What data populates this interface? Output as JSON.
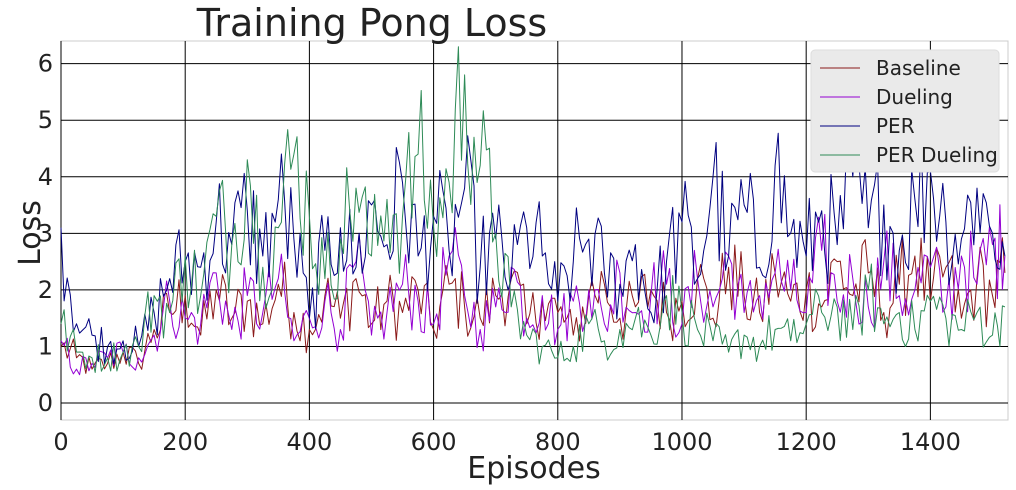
{
  "chart_data": {
    "type": "line",
    "title": "Training Pong Loss",
    "xlabel": "Episodes",
    "ylabel": "Loss",
    "xlim": [
      0,
      1525
    ],
    "ylim": [
      -0.3,
      6.4
    ],
    "xticks": [
      0,
      200,
      400,
      600,
      800,
      1000,
      1200,
      1400
    ],
    "yticks": [
      0,
      1,
      2,
      3,
      4,
      5,
      6
    ],
    "grid": true,
    "legend_position": "top-right",
    "x": [
      0,
      25,
      50,
      75,
      100,
      125,
      150,
      175,
      200,
      225,
      250,
      275,
      300,
      325,
      350,
      375,
      400,
      425,
      450,
      475,
      500,
      525,
      550,
      575,
      600,
      625,
      650,
      675,
      700,
      725,
      750,
      775,
      800,
      825,
      850,
      875,
      900,
      925,
      950,
      975,
      1000,
      1025,
      1050,
      1075,
      1100,
      1125,
      1150,
      1175,
      1200,
      1225,
      1250,
      1275,
      1300,
      1325,
      1350,
      1375,
      1400,
      1425,
      1450,
      1475,
      1500,
      1520
    ],
    "series": [
      {
        "name": "Baseline",
        "color": "#8b1a1a",
        "values": [
          1.0,
          0.8,
          0.6,
          0.7,
          0.9,
          0.7,
          1.3,
          1.6,
          1.9,
          1.2,
          2.0,
          1.5,
          1.8,
          1.4,
          2.1,
          1.6,
          1.3,
          1.9,
          1.5,
          2.2,
          1.4,
          1.8,
          1.6,
          2.0,
          1.3,
          2.1,
          1.7,
          1.5,
          1.9,
          2.2,
          1.4,
          1.8,
          1.6,
          1.2,
          1.9,
          2.1,
          1.5,
          1.7,
          2.0,
          1.6,
          1.8,
          2.2,
          1.5,
          2.4,
          1.9,
          1.6,
          2.3,
          1.8,
          2.0,
          1.7,
          2.5,
          1.9,
          2.3,
          1.6,
          2.1,
          2.6,
          1.8,
          2.4,
          1.5,
          2.2,
          1.9,
          2.3
        ]
      },
      {
        "name": "Dueling",
        "color": "#9400d3",
        "values": [
          1.1,
          0.6,
          0.7,
          0.8,
          0.9,
          0.8,
          1.2,
          1.8,
          1.5,
          1.4,
          2.3,
          1.3,
          1.9,
          1.6,
          2.2,
          1.1,
          1.5,
          1.8,
          1.3,
          2.5,
          1.2,
          1.6,
          2.1,
          1.8,
          1.4,
          2.6,
          1.9,
          1.3,
          1.7,
          2.4,
          1.5,
          1.9,
          1.3,
          1.8,
          2.0,
          1.4,
          2.3,
          1.6,
          1.9,
          2.1,
          1.4,
          2.2,
          1.7,
          2.6,
          1.6,
          1.9,
          2.3,
          2.0,
          1.6,
          2.7,
          1.8,
          2.2,
          1.7,
          2.5,
          1.9,
          2.0,
          2.4,
          1.7,
          2.6,
          2.1,
          2.8,
          2.6
        ]
      },
      {
        "name": "PER",
        "color": "#000080",
        "values": [
          3.1,
          1.4,
          1.2,
          1.0,
          1.1,
          1.0,
          1.6,
          2.2,
          2.5,
          2.4,
          3.2,
          2.8,
          3.4,
          2.6,
          3.6,
          2.9,
          1.5,
          2.7,
          3.1,
          2.4,
          3.5,
          2.8,
          3.9,
          2.6,
          3.3,
          2.7,
          3.8,
          2.4,
          2.9,
          2.2,
          3.1,
          2.6,
          1.8,
          2.5,
          2.9,
          2.3,
          2.1,
          2.8,
          1.6,
          2.5,
          3.2,
          2.2,
          4.0,
          2.6,
          3.5,
          2.4,
          4.2,
          3.0,
          2.6,
          3.4,
          2.8,
          4.0,
          3.1,
          3.5,
          2.7,
          3.6,
          4.1,
          3.2,
          2.9,
          3.8,
          3.0,
          2.6
        ]
      },
      {
        "name": "PER Dueling",
        "color": "#2e8b57",
        "values": [
          1.4,
          0.9,
          0.8,
          0.8,
          0.9,
          1.0,
          1.9,
          1.6,
          2.6,
          1.9,
          3.3,
          2.8,
          4.3,
          2.4,
          3.1,
          4.4,
          3.3,
          2.2,
          2.9,
          3.8,
          2.6,
          3.6,
          3.3,
          4.4,
          3.1,
          3.9,
          5.8,
          4.2,
          3.0,
          1.7,
          1.2,
          1.0,
          0.8,
          1.0,
          1.4,
          1.1,
          1.3,
          1.5,
          1.2,
          1.9,
          1.6,
          1.3,
          1.1,
          0.9,
          1.2,
          1.0,
          1.3,
          1.1,
          1.4,
          1.6,
          1.7,
          1.3,
          2.0,
          1.4,
          1.6,
          1.3,
          1.8,
          1.5,
          1.3,
          1.6,
          1.2,
          1.7
        ]
      }
    ]
  }
}
